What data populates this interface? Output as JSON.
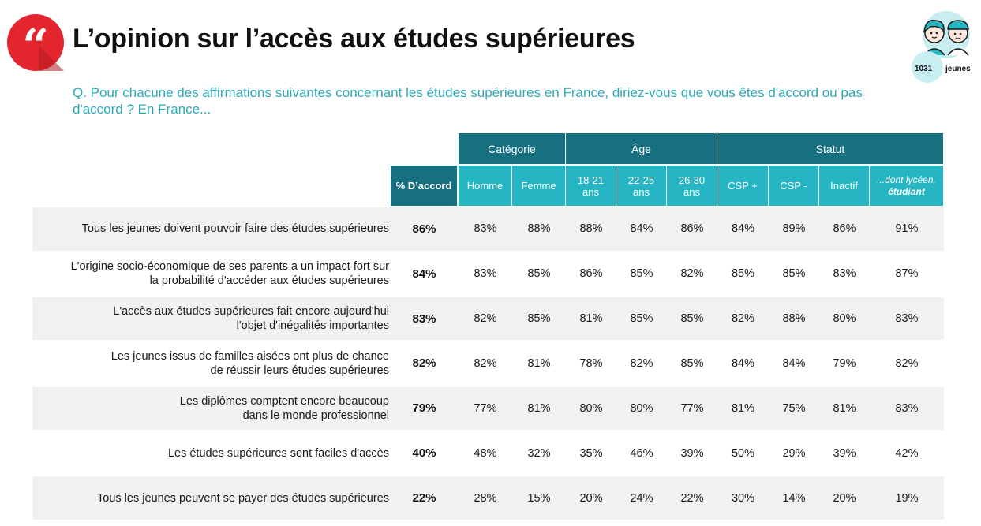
{
  "title": "L’opinion sur l’accès aux études supérieures",
  "question": "Q. Pour chacune des affirmations suivantes concernant les études supérieures en France, diriez-vous que vous êtes d'accord ou pas d'accord ? En France...",
  "badge": {
    "count": "1031",
    "label": "jeunes"
  },
  "colors": {
    "accent_red": "#e3262d",
    "header_dark": "#17707f",
    "header_light": "#26b6c3",
    "question_text": "#2aaab8",
    "row_stripe": "#f1f1f1"
  },
  "icons": {
    "quote": "quote-icon",
    "avatars": "young-people-avatars-icon"
  },
  "chart_data": {
    "type": "table",
    "accord_header": "% D’accord",
    "groups": [
      {
        "label": "Catégorie",
        "span": 2
      },
      {
        "label": "Âge",
        "span": 3
      },
      {
        "label": "Statut",
        "span": 4
      }
    ],
    "columns": [
      {
        "label": "Homme",
        "italic": false
      },
      {
        "label": "Femme",
        "italic": false
      },
      {
        "label": "18-21\nans",
        "italic": false
      },
      {
        "label": "22-25\nans",
        "italic": false
      },
      {
        "label": "26-30\nans",
        "italic": false
      },
      {
        "label": "CSP +",
        "italic": false
      },
      {
        "label": "CSP -",
        "italic": false
      },
      {
        "label": "Inactif",
        "italic": false
      },
      {
        "label": "...dont lycéen,\nétudiant",
        "italic": true
      }
    ],
    "rows": [
      {
        "statement": "Tous les jeunes doivent pouvoir faire des études supérieures",
        "accord": "86%",
        "values": [
          "83%",
          "88%",
          "88%",
          "84%",
          "86%",
          "84%",
          "89%",
          "86%",
          "91%"
        ]
      },
      {
        "statement": "L'origine socio-économique de ses parents a un impact fort sur\nla probabilité d'accéder aux études supérieures",
        "accord": "84%",
        "values": [
          "83%",
          "85%",
          "86%",
          "85%",
          "82%",
          "85%",
          "85%",
          "83%",
          "87%"
        ]
      },
      {
        "statement": "L'accès aux études supérieures fait encore aujourd'hui\nl'objet d'inégalités importantes",
        "accord": "83%",
        "values": [
          "82%",
          "85%",
          "81%",
          "85%",
          "85%",
          "82%",
          "88%",
          "80%",
          "83%"
        ]
      },
      {
        "statement": "Les jeunes issus de familles aisées ont plus de chance\nde réussir leurs études supérieures",
        "accord": "82%",
        "values": [
          "82%",
          "81%",
          "78%",
          "82%",
          "85%",
          "84%",
          "84%",
          "79%",
          "82%"
        ]
      },
      {
        "statement": "Les diplômes comptent encore beaucoup\ndans le monde professionnel",
        "accord": "79%",
        "values": [
          "77%",
          "81%",
          "80%",
          "80%",
          "77%",
          "81%",
          "75%",
          "81%",
          "83%"
        ]
      },
      {
        "statement": "Les études supérieures sont faciles d'accès",
        "accord": "40%",
        "values": [
          "48%",
          "32%",
          "35%",
          "46%",
          "39%",
          "50%",
          "29%",
          "39%",
          "42%"
        ]
      },
      {
        "statement": "Tous les jeunes peuvent se payer des études supérieures",
        "accord": "22%",
        "values": [
          "28%",
          "15%",
          "20%",
          "24%",
          "22%",
          "30%",
          "14%",
          "20%",
          "19%"
        ]
      }
    ]
  }
}
